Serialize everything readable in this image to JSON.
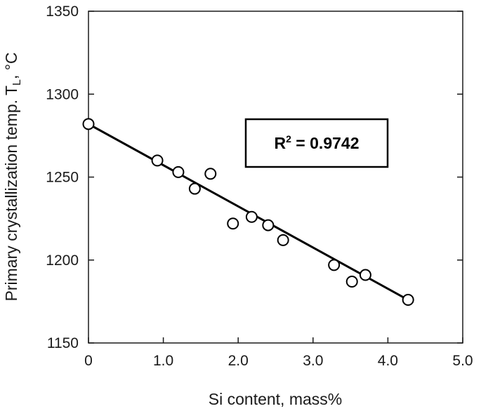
{
  "chart_data": {
    "type": "scatter",
    "xlabel": "Si content, mass%",
    "ylabel_main": "Primary crystallization temp. T",
    "ylabel_sub": "L",
    "ylabel_unit": ", °C",
    "xlim": [
      0,
      5.0
    ],
    "ylim": [
      1150,
      1350
    ],
    "x_ticks": [
      0,
      1.0,
      2.0,
      3.0,
      4.0,
      5.0
    ],
    "x_tick_labels": [
      "0",
      "1.0",
      "2.0",
      "3.0",
      "4.0",
      "5.0"
    ],
    "y_ticks": [
      1150,
      1200,
      1250,
      1300,
      1350
    ],
    "y_tick_labels": [
      "1150",
      "1200",
      "1250",
      "1300",
      "1350"
    ],
    "grid": false,
    "points": [
      {
        "x": 0.0,
        "y": 1282
      },
      {
        "x": 0.92,
        "y": 1260
      },
      {
        "x": 1.2,
        "y": 1253
      },
      {
        "x": 1.42,
        "y": 1243
      },
      {
        "x": 1.63,
        "y": 1252
      },
      {
        "x": 1.93,
        "y": 1222
      },
      {
        "x": 2.18,
        "y": 1226
      },
      {
        "x": 2.4,
        "y": 1221
      },
      {
        "x": 2.6,
        "y": 1212
      },
      {
        "x": 3.28,
        "y": 1197
      },
      {
        "x": 3.52,
        "y": 1187
      },
      {
        "x": 3.7,
        "y": 1191
      },
      {
        "x": 4.27,
        "y": 1176
      }
    ],
    "fit_line": {
      "x": [
        0.0,
        4.27
      ],
      "y": [
        1282,
        1176
      ]
    },
    "annotation": {
      "prefix": "R",
      "sup": "2",
      "suffix": " = 0.9742"
    },
    "colors": {
      "axis": "#1a1a1a",
      "line": "#000000",
      "marker_fill": "#ffffff",
      "marker_stroke": "#000000"
    }
  }
}
